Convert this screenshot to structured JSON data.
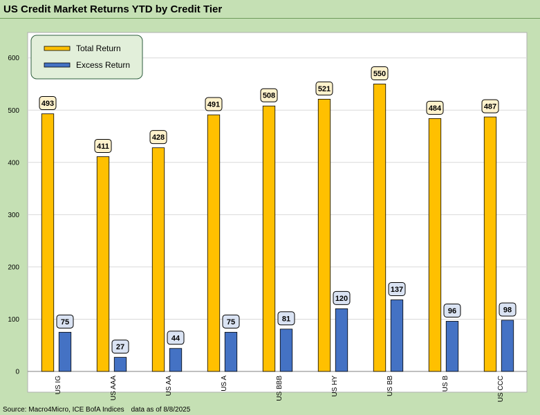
{
  "title": "US Credit Market Returns YTD by Credit Tier",
  "footer": {
    "source": "Source: Macro4Micro, ICE BofA Indices",
    "asof": "data as of 8/8/2025"
  },
  "colors": {
    "total": "#ffc000",
    "excess": "#4472c4",
    "total_label_bg": "#fff2cc",
    "excess_label_bg": "#dae3f3",
    "legend_bg": "#e2efda",
    "legend_border": "#2e5e3e"
  },
  "chart_data": {
    "type": "bar",
    "title": "US Credit Market Returns YTD by Credit Tier",
    "categories": [
      "US IG",
      "US AAA",
      "US AA",
      "US A",
      "US BBB",
      "US HY",
      "US BB",
      "US B",
      "US CCC"
    ],
    "series": [
      {
        "name": "Total Return",
        "values": [
          493,
          411,
          428,
          491,
          508,
          521,
          550,
          484,
          487
        ]
      },
      {
        "name": "Excess Return",
        "values": [
          75,
          27,
          44,
          75,
          81,
          120,
          137,
          96,
          98
        ]
      }
    ],
    "ylim": [
      0,
      650
    ],
    "yticks": [
      0,
      100,
      200,
      300,
      400,
      500,
      600
    ],
    "grid": true,
    "legend": "top-left",
    "data_labels": true
  }
}
